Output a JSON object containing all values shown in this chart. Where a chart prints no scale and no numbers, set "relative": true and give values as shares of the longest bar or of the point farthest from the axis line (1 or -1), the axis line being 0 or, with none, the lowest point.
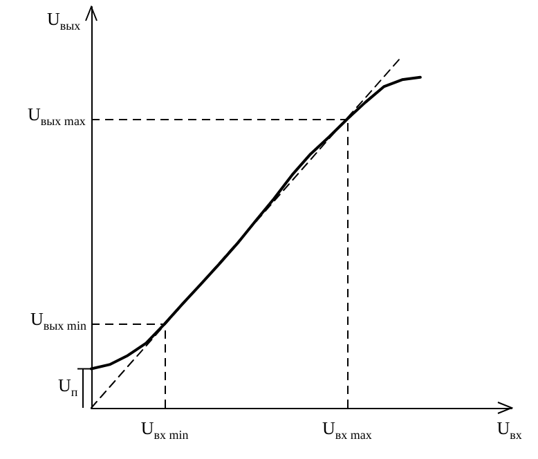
{
  "chart_data": {
    "type": "line",
    "relative": true,
    "xlabel": "U$_{вх}$",
    "ylabel": "U$_{вых}$",
    "categories": [
      null,
      null,
      null,
      null,
      "U$_{вх min}$",
      null,
      null,
      null,
      null,
      null,
      null,
      null,
      null,
      null,
      "U$_{вх max}$",
      null,
      null,
      null,
      null,
      null,
      null,
      null,
      null,
      null
    ],
    "series": [
      {
        "color": "#000000",
        "line_style": "solid",
        "values": [
          0.111,
          0.123,
          0.149,
          0.184,
          0.238,
          0.296,
          0.352,
          0.409,
          0.468,
          0.532,
          0.595,
          0.663,
          0.722,
          0.77,
          0.821,
          0.869,
          0.913,
          0.933,
          0.94,
          null,
          null,
          null,
          null,
          null
        ]
      },
      {
        "color": "#000000",
        "line_style": "dashed",
        "values": [
          0,
          0.059,
          0.118,
          0.176,
          0.235,
          0.294,
          0.353,
          0.412,
          0.471,
          0.529,
          0.588,
          0.647,
          0.706,
          0.765,
          0.824,
          0.882,
          0.941,
          1,
          null,
          null,
          null,
          null,
          null,
          null
        ]
      }
    ],
    "ref_lines": [
      {
        "axis": "y",
        "value": 0.238,
        "label": "U$_{вых min}$",
        "line_style": "dashed"
      },
      {
        "axis": "y",
        "value": 0.821,
        "label": "U$_{вых max}$",
        "line_style": "dashed"
      },
      {
        "axis": "x",
        "value": "U$_{вх min}$",
        "line_style": "dashed"
      },
      {
        "axis": "x",
        "value": "U$_{вх max}$",
        "line_style": "dashed"
      }
    ],
    "annotations": [
      "U$_{п}$"
    ]
  }
}
